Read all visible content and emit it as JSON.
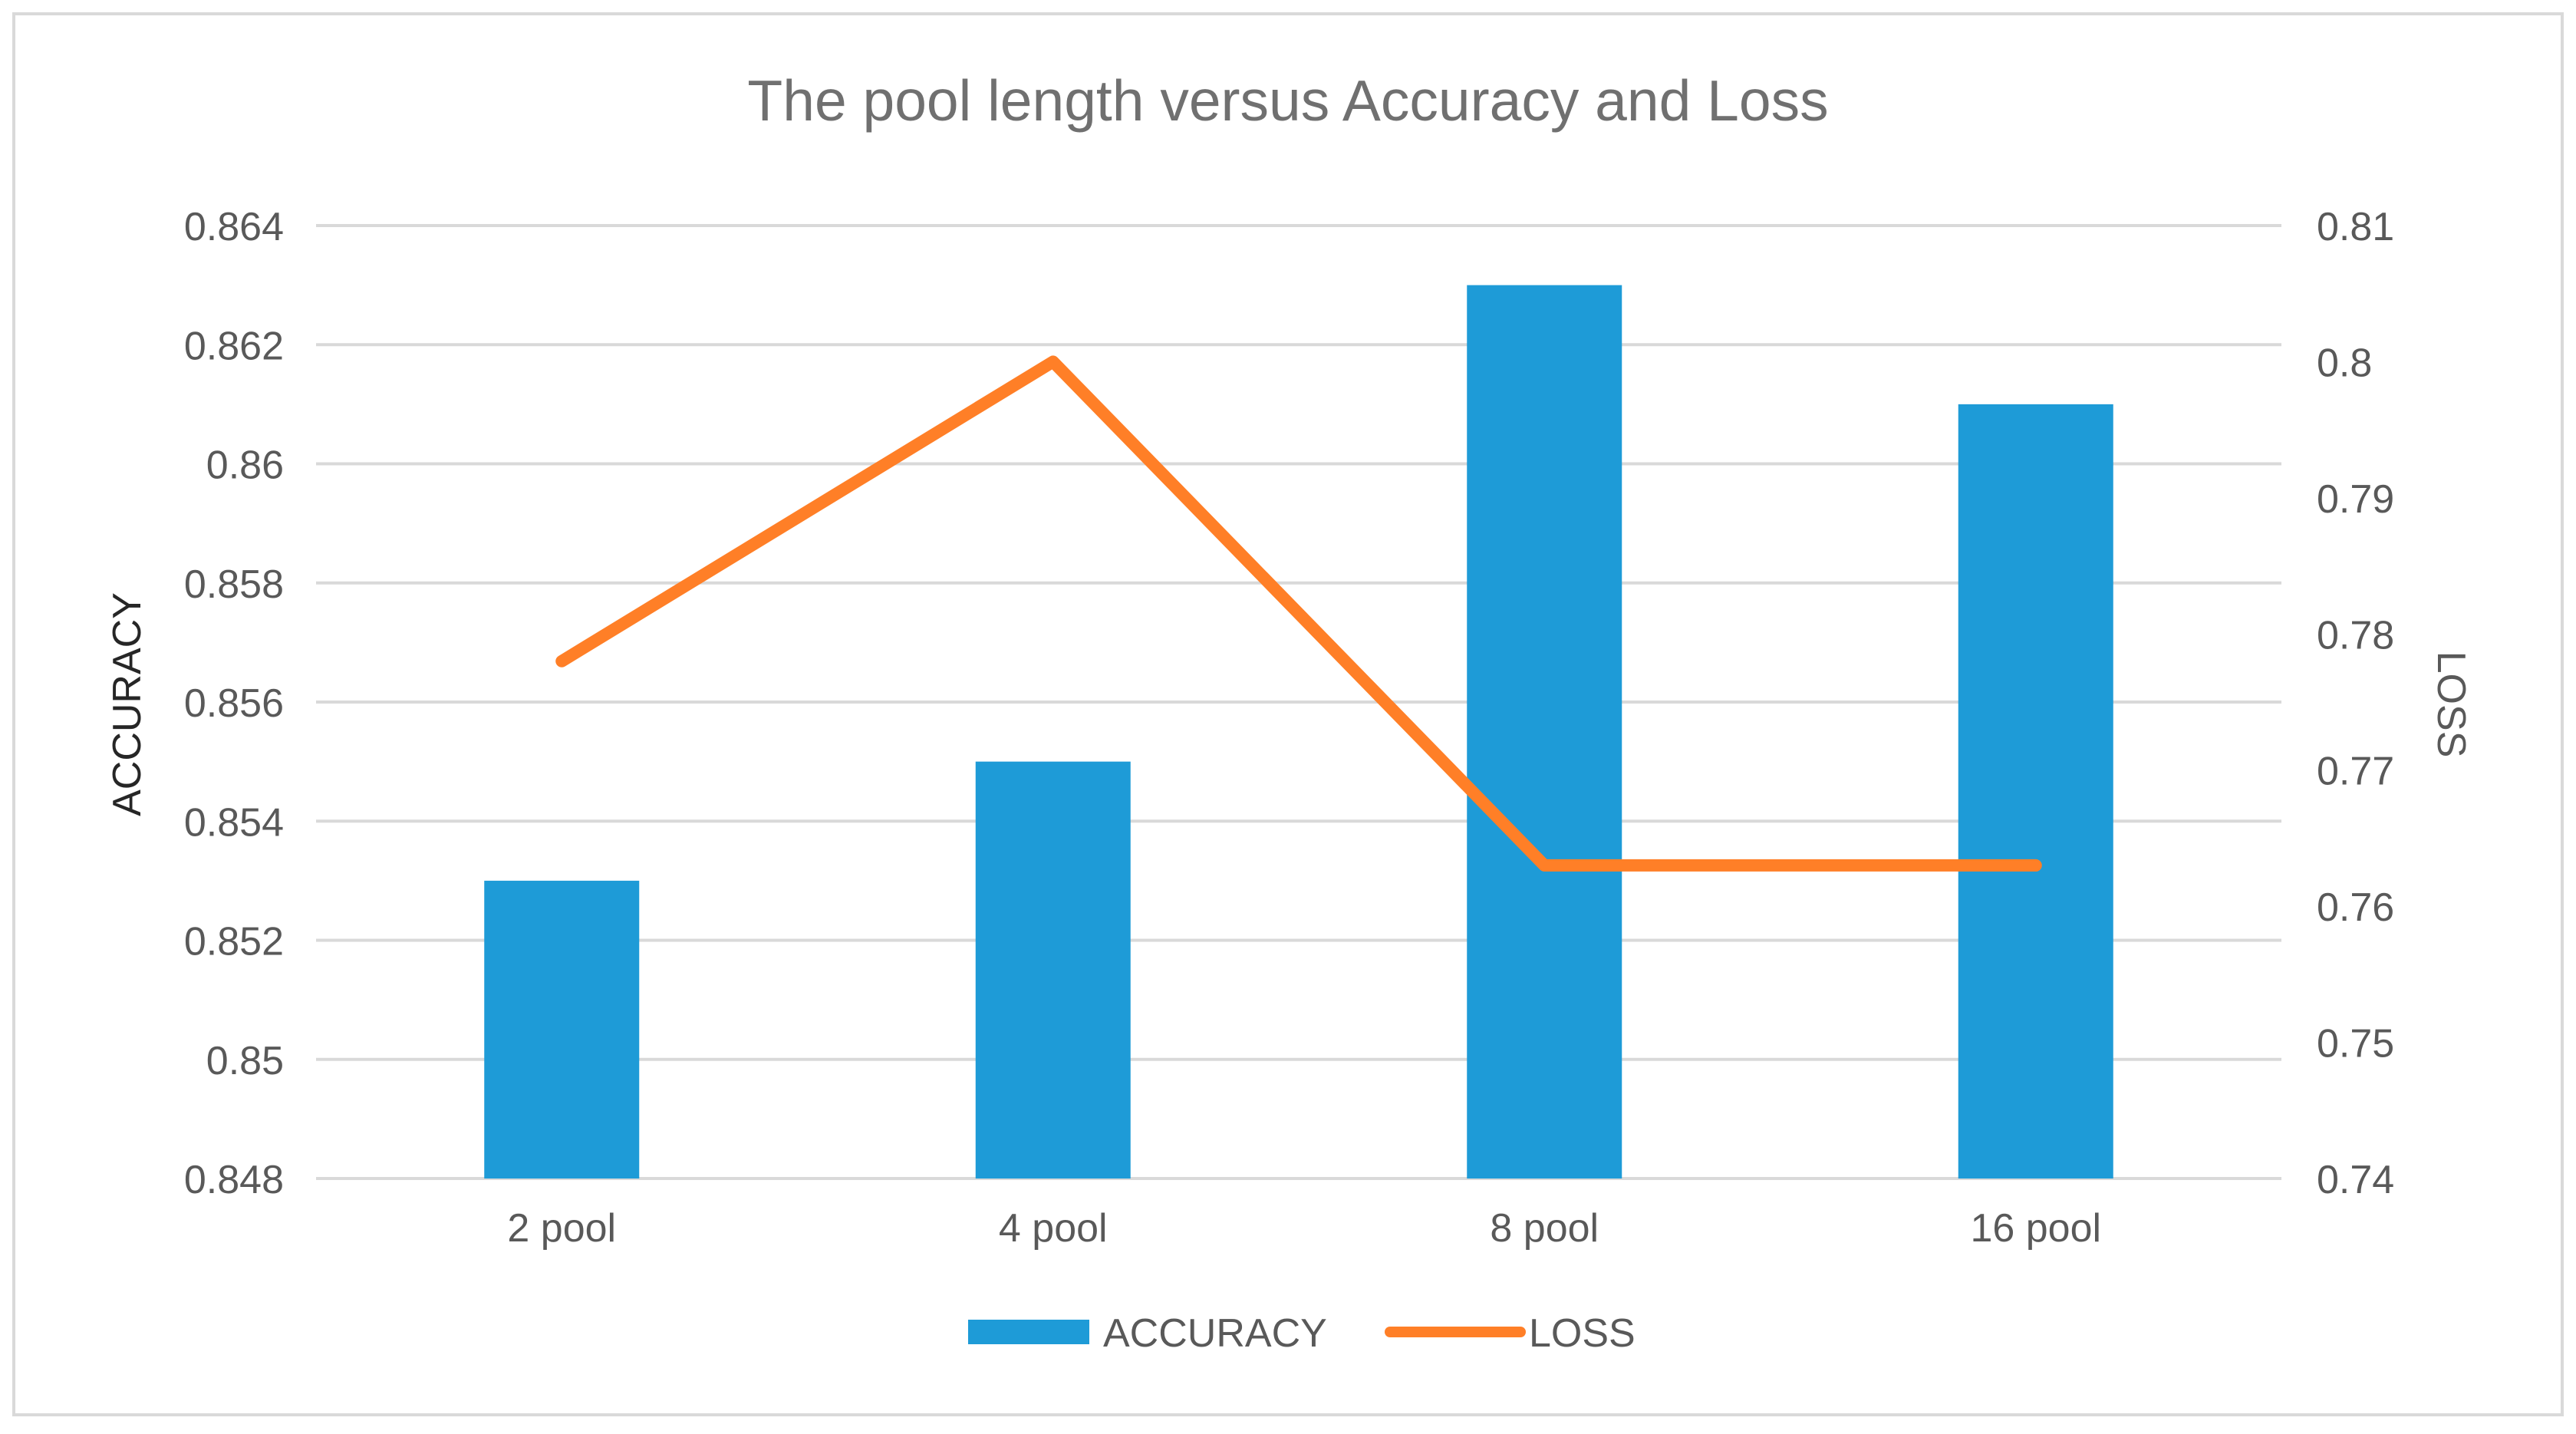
{
  "chart_data": {
    "type": "bar",
    "title": "The pool length versus Accuracy and Loss",
    "categories": [
      "2 pool",
      "4 pool",
      "8 pool",
      "16 pool"
    ],
    "series": [
      {
        "name": "ACCURACY",
        "type": "bar",
        "axis": "left",
        "color": "#1E9BD7",
        "values": [
          0.853,
          0.855,
          0.863,
          0.861
        ]
      },
      {
        "name": "LOSS",
        "type": "line",
        "axis": "right",
        "color": "#FF7F27",
        "values": [
          0.778,
          0.8,
          0.763,
          0.763
        ]
      }
    ],
    "y_left": {
      "label": "ACCURACY",
      "range": [
        0.848,
        0.864
      ],
      "ticks": [
        "0.848",
        "0.85",
        "0.852",
        "0.854",
        "0.856",
        "0.858",
        "0.86",
        "0.862",
        "0.864"
      ]
    },
    "y_right": {
      "label": "LOSS",
      "range": [
        0.74,
        0.81
      ],
      "ticks": [
        "0.74",
        "0.75",
        "0.76",
        "0.77",
        "0.78",
        "0.79",
        "0.8",
        "0.81"
      ]
    },
    "grid": true,
    "legend": "bottom"
  },
  "colors": {
    "grid": "#D9D9D9",
    "text": "#595959",
    "title": "#707070",
    "frame": "#D9D9D9"
  }
}
